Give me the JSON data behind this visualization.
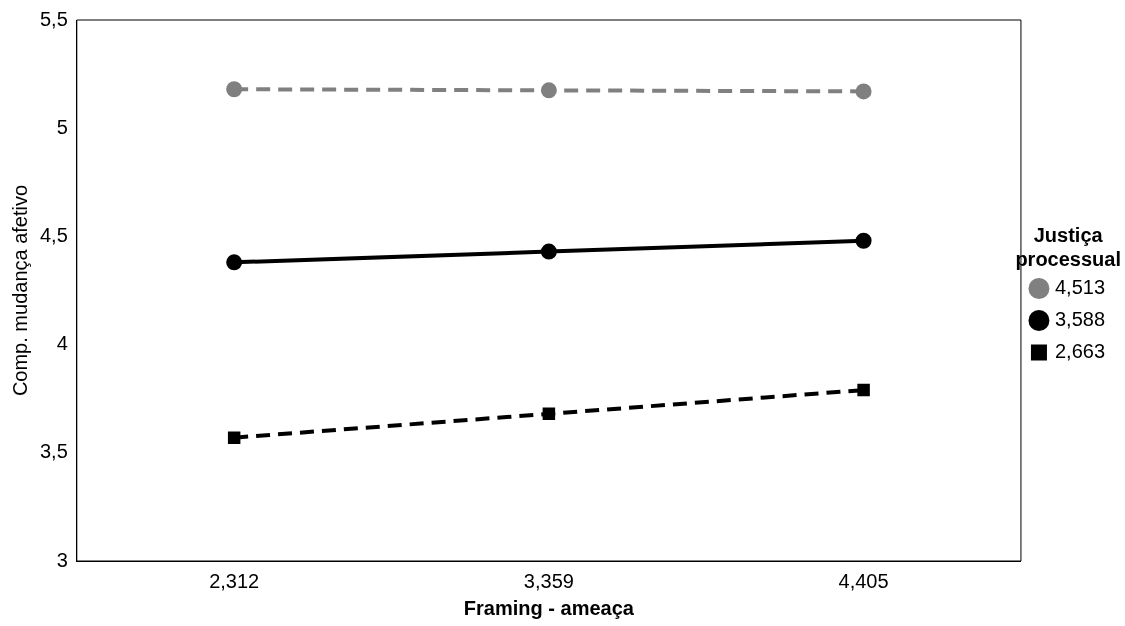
{
  "chart_data": {
    "type": "line",
    "xlabel": "Framing - ameaça",
    "ylabel": "Comp. mudança afetivo",
    "legend_title": "Justiça processual",
    "categories": [
      "2,312",
      "3,359",
      "4,405"
    ],
    "series": [
      {
        "name": "4,513",
        "color": "#808080",
        "values": [
          5.18,
          5.175,
          5.17
        ],
        "line_style": "dashed",
        "marker": "circle"
      },
      {
        "name": "3,588",
        "color": "#000000",
        "values": [
          4.38,
          4.43,
          4.48
        ],
        "line_style": "solid",
        "marker": "circle"
      },
      {
        "name": "2,663",
        "color": "#000000",
        "values": [
          3.57,
          3.68,
          3.79
        ],
        "line_style": "dashed",
        "marker": "square"
      }
    ],
    "ylim": [
      3,
      5.5
    ],
    "yticks": [
      3,
      {
        "value": 3.5,
        "label": "3,5"
      },
      4,
      {
        "value": 4.5,
        "label": "4,5"
      },
      5,
      {
        "value": 5.5,
        "label": "5,5"
      }
    ],
    "grid": false,
    "legend": "right"
  }
}
